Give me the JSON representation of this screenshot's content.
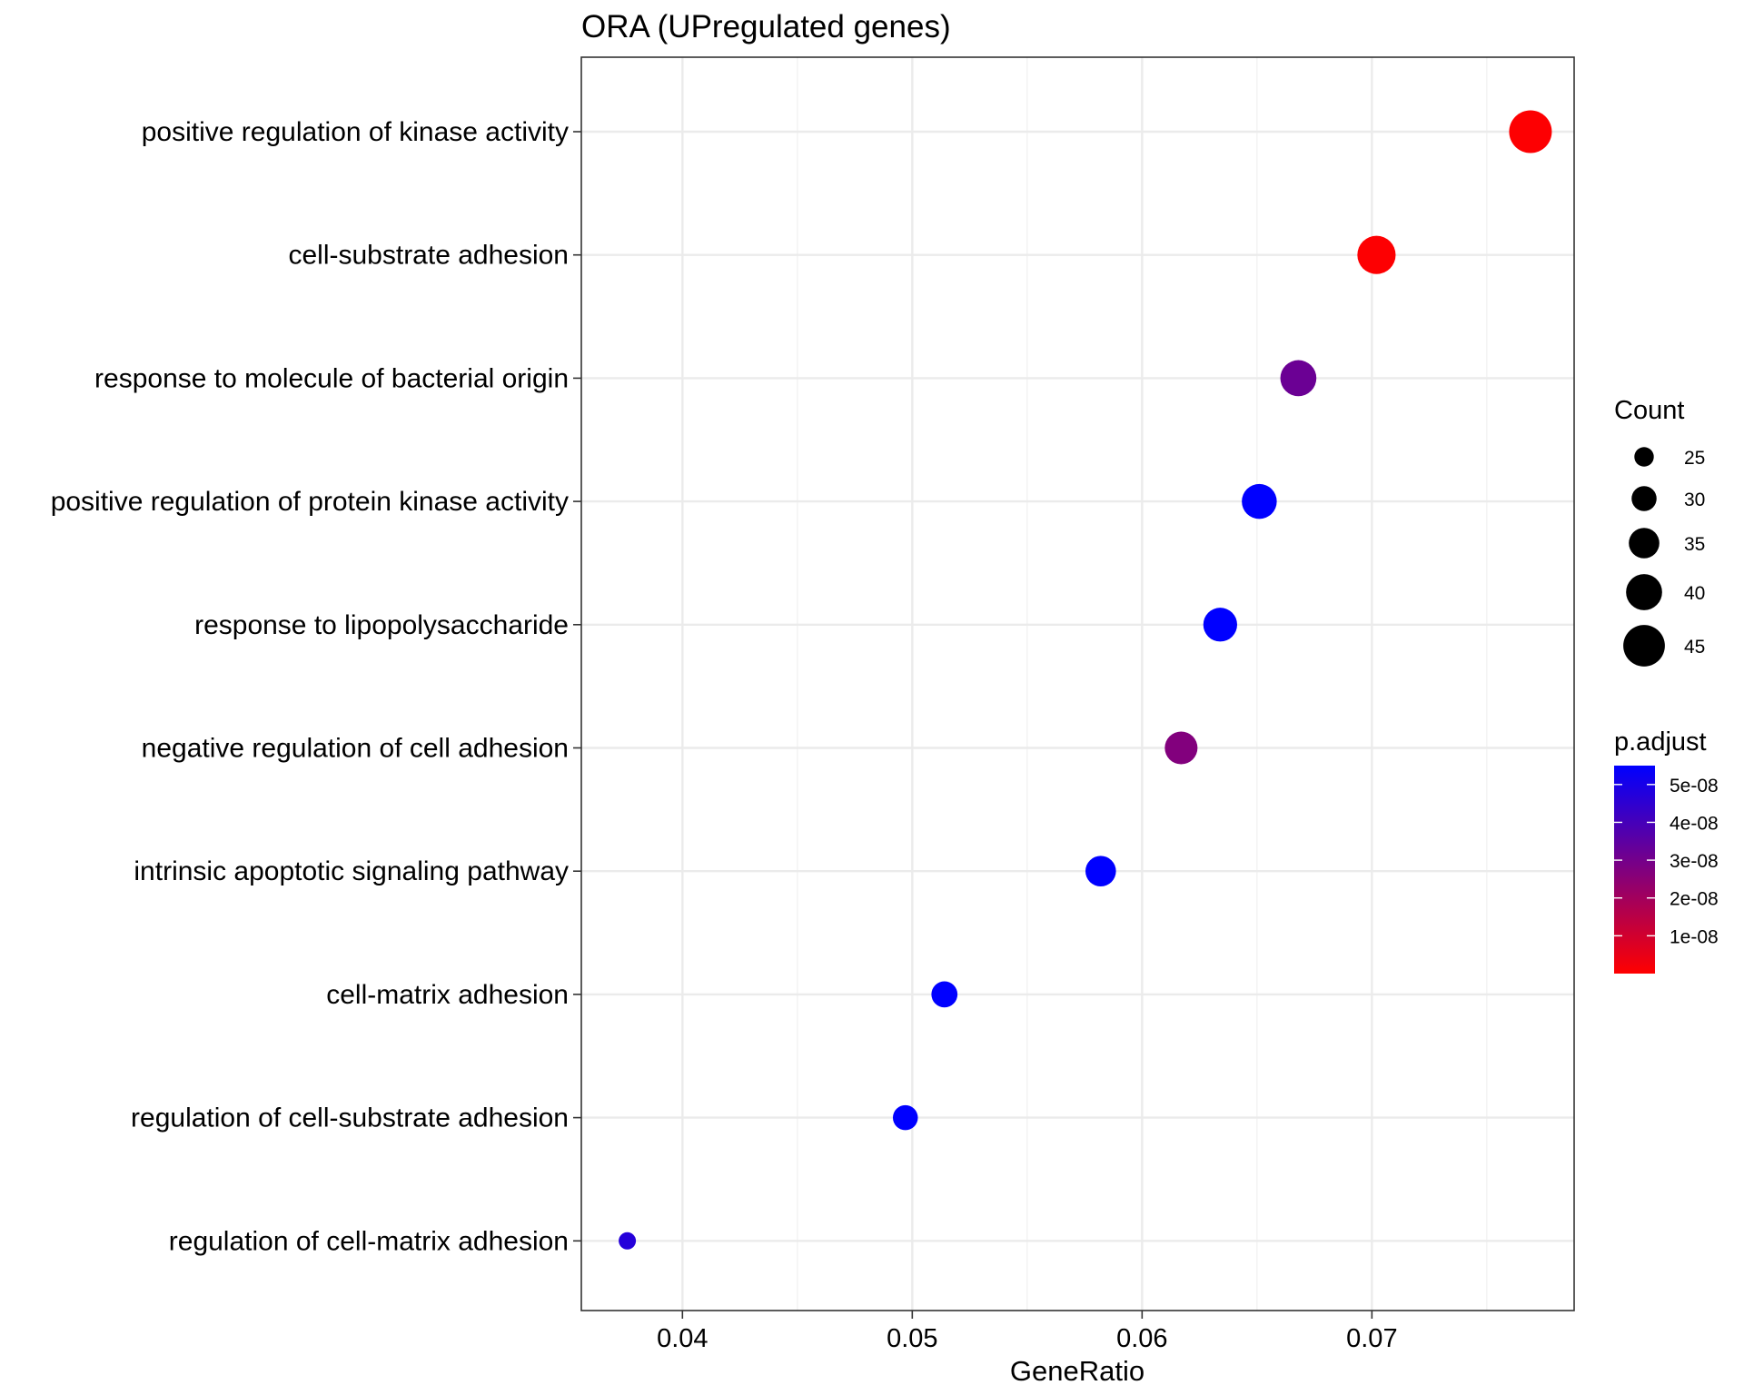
{
  "chart_data": {
    "type": "scatter",
    "title": "ORA (UPregulated genes)",
    "xlabel": "GeneRatio",
    "ylabel": "",
    "xlim": [
      0.0356,
      0.0788
    ],
    "xticks": [
      0.04,
      0.05,
      0.06,
      0.07
    ],
    "xtick_labels": [
      "0.04",
      "0.05",
      "0.06",
      "0.07"
    ],
    "grid": true,
    "categories": [
      "positive regulation of kinase activity",
      "cell-substrate adhesion",
      "response to molecule of bacterial origin",
      "positive regulation of protein kinase activity",
      "response to lipopolysaccharide",
      "negative regulation of cell adhesion",
      "intrinsic apoptotic signaling pathway",
      "cell-matrix adhesion",
      "regulation of cell-substrate adhesion",
      "regulation of cell-matrix adhesion"
    ],
    "points": [
      {
        "term": "positive regulation of kinase activity",
        "gene_ratio": 0.0769,
        "count": 46,
        "p_adjust": 5e-10
      },
      {
        "term": "cell-substrate adhesion",
        "gene_ratio": 0.0702,
        "count": 42,
        "p_adjust": 5e-10
      },
      {
        "term": "response to molecule of bacterial origin",
        "gene_ratio": 0.0668,
        "count": 40,
        "p_adjust": 3.2e-08
      },
      {
        "term": "positive regulation of protein kinase activity",
        "gene_ratio": 0.0651,
        "count": 39,
        "p_adjust": 5.5e-08
      },
      {
        "term": "response to lipopolysaccharide",
        "gene_ratio": 0.0634,
        "count": 38,
        "p_adjust": 5.5e-08
      },
      {
        "term": "negative regulation of cell adhesion",
        "gene_ratio": 0.0617,
        "count": 37,
        "p_adjust": 2.7e-08
      },
      {
        "term": "intrinsic apoptotic signaling pathway",
        "gene_ratio": 0.0582,
        "count": 35,
        "p_adjust": 5.5e-08
      },
      {
        "term": "cell-matrix adhesion",
        "gene_ratio": 0.0514,
        "count": 31,
        "p_adjust": 5.5e-08
      },
      {
        "term": "regulation of cell-substrate adhesion",
        "gene_ratio": 0.0497,
        "count": 30,
        "p_adjust": 5.5e-08
      },
      {
        "term": "regulation of cell-matrix adhesion",
        "gene_ratio": 0.0376,
        "count": 23,
        "p_adjust": 4.7e-08
      }
    ],
    "legend_size": {
      "title": "Count",
      "values": [
        25,
        30,
        35,
        40,
        45
      ],
      "labels": [
        "25",
        "30",
        "35",
        "40",
        "45"
      ]
    },
    "legend_color": {
      "title": "p.adjust",
      "min": 0,
      "max": 5.5e-08,
      "low_color": "#FF0000",
      "high_color": "#0000FF",
      "ticks": [
        5e-08,
        4e-08,
        3e-08,
        2e-08,
        1e-08
      ],
      "tick_labels": [
        "5e-08",
        "4e-08",
        "3e-08",
        "2e-08",
        "1e-08"
      ]
    }
  }
}
